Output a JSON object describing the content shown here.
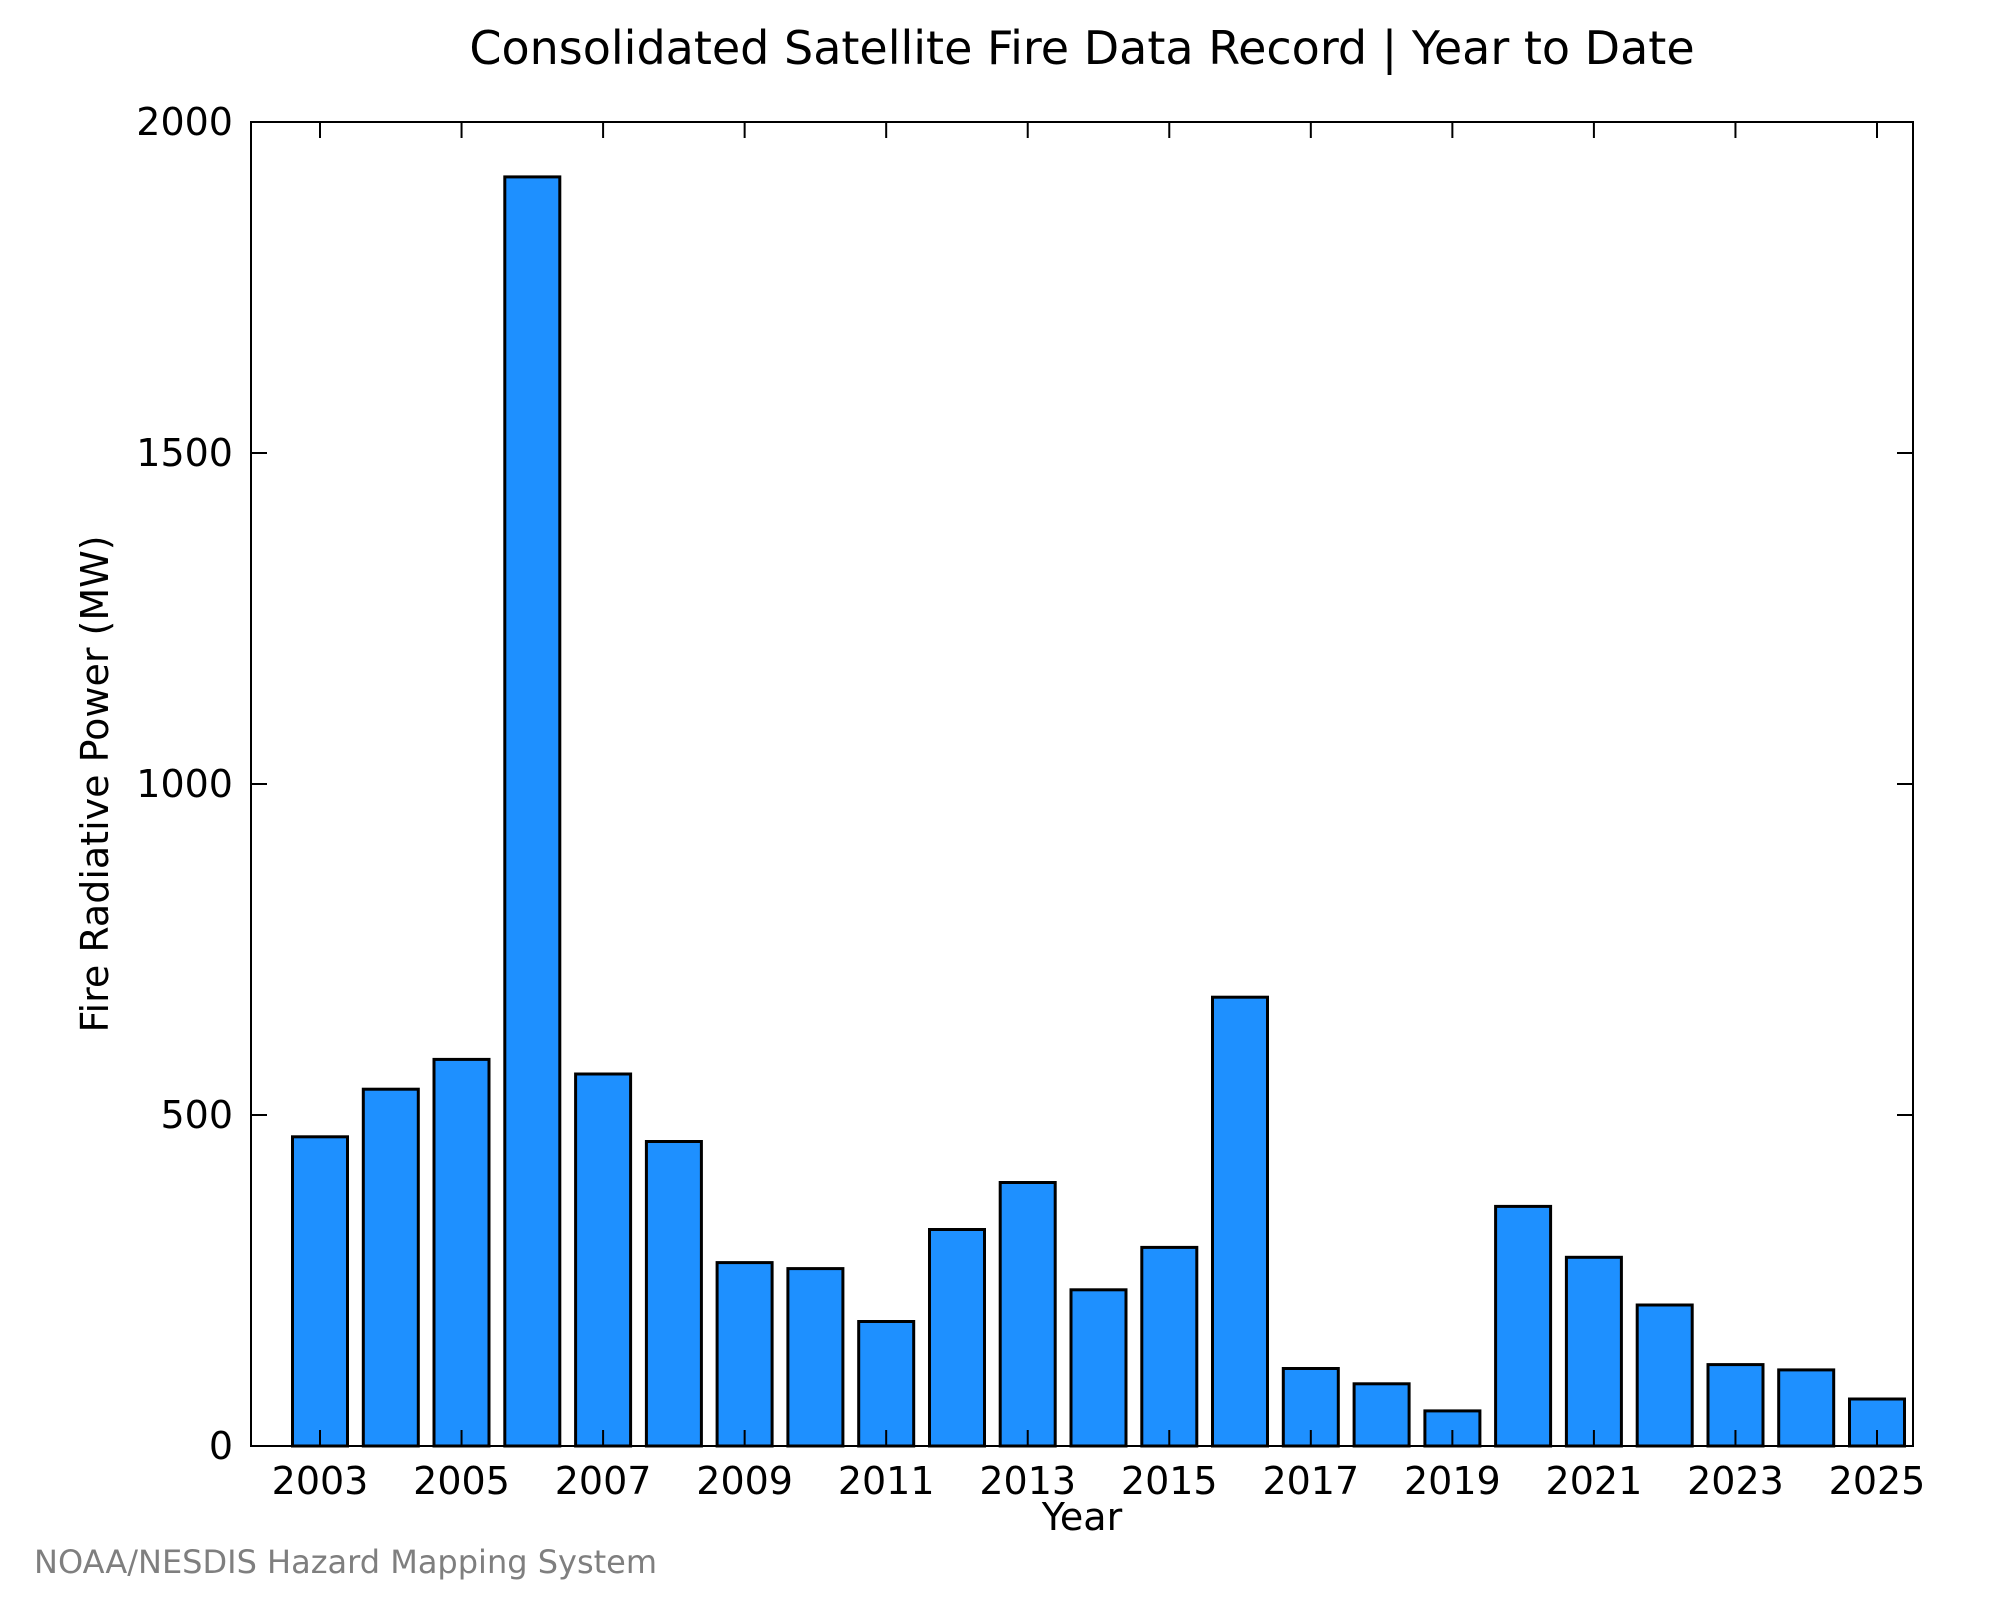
{
  "chart_data": {
    "type": "bar",
    "title": "Consolidated Satellite Fire Data Record | Year to Date",
    "xlabel": "Year",
    "ylabel": "Fire Radiative Power (MW)",
    "categories": [
      "2003",
      "2004",
      "2005",
      "2006",
      "2007",
      "2008",
      "2009",
      "2010",
      "2011",
      "2012",
      "2013",
      "2014",
      "2015",
      "2016",
      "2017",
      "2018",
      "2019",
      "2020",
      "2021",
      "2022",
      "2023",
      "2024",
      "2025"
    ],
    "values": [
      467,
      539,
      584,
      1917,
      562,
      460,
      277,
      268,
      188,
      327,
      398,
      236,
      300,
      678,
      117,
      94,
      53,
      362,
      285,
      213,
      123,
      115,
      71
    ],
    "x_tick_labels": [
      "2003",
      "2005",
      "2007",
      "2009",
      "2011",
      "2013",
      "2015",
      "2017",
      "2019",
      "2021",
      "2023",
      "2025"
    ],
    "y_ticks": [
      0,
      500,
      1000,
      1500,
      2000
    ],
    "ylim": [
      0,
      2000
    ],
    "grid": false,
    "legend": "none",
    "bar_color": "#1e90ff",
    "edge_color": "#000000"
  },
  "credit": "NOAA/NESDIS Hazard Mapping System"
}
